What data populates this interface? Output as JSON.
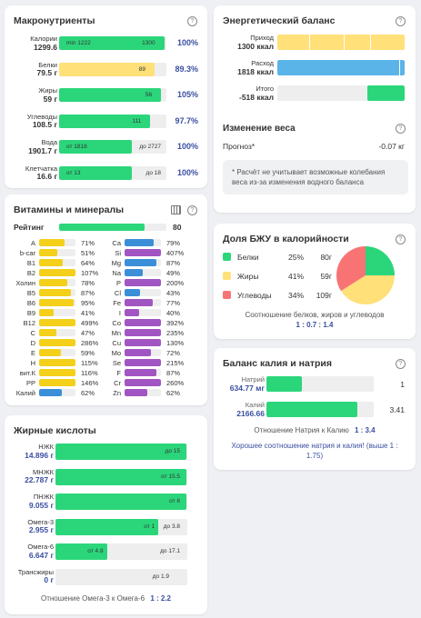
{
  "macro": {
    "title": "Макронутриенты",
    "rows": [
      {
        "label": "Калории",
        "value": "1299.6",
        "pct": "100%",
        "fill": 0.98,
        "color": "g",
        "inner_left": "min 1222",
        "inner_right": "1300"
      },
      {
        "label": "Белки",
        "value": "79.5 г",
        "pct": "89.3%",
        "fill": 0.89,
        "color": "y",
        "inner_left": "",
        "inner_right": "89"
      },
      {
        "label": "Жиры",
        "value": "59 г",
        "pct": "105%",
        "fill": 0.95,
        "color": "g",
        "inner_left": "",
        "inner_right": "56"
      },
      {
        "label": "Углеводы",
        "value": "108.5 г",
        "pct": "97.7%",
        "fill": 0.85,
        "color": "g",
        "inner_left": "",
        "inner_right": "111"
      },
      {
        "label": "Вода",
        "value": "1901.7 г",
        "pct": "100%",
        "fill": 0.68,
        "color": "g",
        "inner_left": "от 1818",
        "inner_right": "до 2727"
      },
      {
        "label": "Клетчатка",
        "value": "16.6 г",
        "pct": "100%",
        "fill": 0.68,
        "color": "g",
        "inner_left": "от 13",
        "inner_right": "до 18"
      }
    ]
  },
  "energy": {
    "title": "Энергетический баланс",
    "rows": [
      {
        "label": "Приход",
        "value": "1300 ккал",
        "fill": 1.0,
        "color": "y"
      },
      {
        "label": "Расход",
        "value": "1818 ккал",
        "fill": 1.0,
        "color": "bl"
      },
      {
        "label": "Итого",
        "value": "-518 ккал",
        "fill": 0.29,
        "color": "g"
      }
    ]
  },
  "weight": {
    "title": "Изменение веса",
    "forecast_label": "Прогноз*",
    "forecast_value": "-0.07 кг",
    "note": "* Расчёт не учитывает возможные колебания веса из-за изменения водного баланса"
  },
  "vitamins": {
    "title": "Витамины и минералы",
    "rating_label": "Рейтинг",
    "rating_value": "80",
    "rating_fill": 0.8,
    "left": [
      {
        "n": "A",
        "p": "71%",
        "f": 0.71,
        "c": "#f4d01a"
      },
      {
        "n": "b-car",
        "p": "51%",
        "f": 0.51,
        "c": "#f4d01a"
      },
      {
        "n": "B1",
        "p": "64%",
        "f": 0.64,
        "c": "#f4d01a"
      },
      {
        "n": "B2",
        "p": "107%",
        "f": 1.0,
        "c": "#f4d01a"
      },
      {
        "n": "Холин",
        "p": "78%",
        "f": 0.78,
        "c": "#f4d01a"
      },
      {
        "n": "B5",
        "p": "87%",
        "f": 0.87,
        "c": "#f4d01a"
      },
      {
        "n": "B6",
        "p": "95%",
        "f": 0.95,
        "c": "#f4d01a"
      },
      {
        "n": "B9",
        "p": "41%",
        "f": 0.41,
        "c": "#f4d01a"
      },
      {
        "n": "B12",
        "p": "499%",
        "f": 1.0,
        "c": "#f4d01a"
      },
      {
        "n": "C",
        "p": "47%",
        "f": 0.47,
        "c": "#f4d01a"
      },
      {
        "n": "D",
        "p": "286%",
        "f": 1.0,
        "c": "#f4d01a"
      },
      {
        "n": "E",
        "p": "59%",
        "f": 0.59,
        "c": "#f4d01a"
      },
      {
        "n": "H",
        "p": "115%",
        "f": 1.0,
        "c": "#f4d01a"
      },
      {
        "n": "вит.К",
        "p": "116%",
        "f": 1.0,
        "c": "#f4d01a"
      },
      {
        "n": "PP",
        "p": "146%",
        "f": 1.0,
        "c": "#f4d01a"
      },
      {
        "n": "Калий",
        "p": "62%",
        "f": 0.62,
        "c": "#3b8fd9"
      }
    ],
    "right": [
      {
        "n": "Ca",
        "p": "79%",
        "f": 0.79,
        "c": "#3b8fd9"
      },
      {
        "n": "Si",
        "p": "407%",
        "f": 1.0,
        "c": "#a155c2"
      },
      {
        "n": "Mg",
        "p": "87%",
        "f": 0.87,
        "c": "#3b8fd9"
      },
      {
        "n": "Na",
        "p": "49%",
        "f": 0.49,
        "c": "#3b8fd9"
      },
      {
        "n": "P",
        "p": "200%",
        "f": 1.0,
        "c": "#a155c2"
      },
      {
        "n": "Cl",
        "p": "43%",
        "f": 0.43,
        "c": "#3b8fd9"
      },
      {
        "n": "Fe",
        "p": "77%",
        "f": 0.77,
        "c": "#a155c2"
      },
      {
        "n": "I",
        "p": "40%",
        "f": 0.4,
        "c": "#a155c2"
      },
      {
        "n": "Co",
        "p": "392%",
        "f": 1.0,
        "c": "#a155c2"
      },
      {
        "n": "Mn",
        "p": "235%",
        "f": 1.0,
        "c": "#a155c2"
      },
      {
        "n": "Cu",
        "p": "130%",
        "f": 1.0,
        "c": "#a155c2"
      },
      {
        "n": "Mo",
        "p": "72%",
        "f": 0.72,
        "c": "#a155c2"
      },
      {
        "n": "Se",
        "p": "215%",
        "f": 1.0,
        "c": "#a155c2"
      },
      {
        "n": "F",
        "p": "87%",
        "f": 0.87,
        "c": "#a155c2"
      },
      {
        "n": "Cr",
        "p": "260%",
        "f": 1.0,
        "c": "#a155c2"
      },
      {
        "n": "Zn",
        "p": "62%",
        "f": 0.62,
        "c": "#a155c2"
      }
    ]
  },
  "bju": {
    "title": "Доля БЖУ в калорийности",
    "rows": [
      {
        "label": "Белки",
        "pct": "25%",
        "grams": "80г",
        "color": "#2bd67b"
      },
      {
        "label": "Жиры",
        "pct": "41%",
        "grams": "59г",
        "color": "#ffe079"
      },
      {
        "label": "Углеводы",
        "pct": "34%",
        "grams": "109г",
        "color": "#f87474"
      }
    ],
    "ratio_text": "Соотношение белков, жиров и углеводов",
    "ratio_value": "1 : 0.7 : 1.4"
  },
  "kna": {
    "title": "Баланс калия и натрия",
    "rows": [
      {
        "label": "Натрий",
        "value": "634.77 мг",
        "fill": 0.33,
        "num": "1"
      },
      {
        "label": "Калий",
        "value": "2166.66",
        "fill": 0.85,
        "num": "3.41"
      }
    ],
    "ratio_text": "Отношение Натрия к Калию",
    "ratio_value": "1 : 3.4",
    "comment": "Хорошее соотношение натрия и калия! (выше 1 : 1.75)"
  },
  "fats": {
    "title": "Жирные кислоты",
    "rows": [
      {
        "label": "НЖК",
        "value": "14.896 г",
        "fill": 0.99,
        "inner": "до 15"
      },
      {
        "label": "МНЖК",
        "value": "22.787 г",
        "fill": 0.99,
        "inner": "от 15.5"
      },
      {
        "label": "ПНЖК",
        "value": "9.055 г",
        "fill": 0.99,
        "inner": "от 8"
      },
      {
        "label": "Омега-3",
        "value": "2.955 г",
        "fill": 0.78,
        "inner": "от 1",
        "inner2": "до 3.8"
      },
      {
        "label": "Омега-6",
        "value": "6.647 г",
        "fill": 0.39,
        "inner": "от 4.8",
        "inner2": "до 17.1"
      },
      {
        "label": "Трансжиры",
        "value": "0 г",
        "fill": 0,
        "inner": "до 1.9"
      }
    ],
    "ratio_text": "Отношение Омега-3 к Омега-6",
    "ratio_value": "1 : 2.2"
  }
}
